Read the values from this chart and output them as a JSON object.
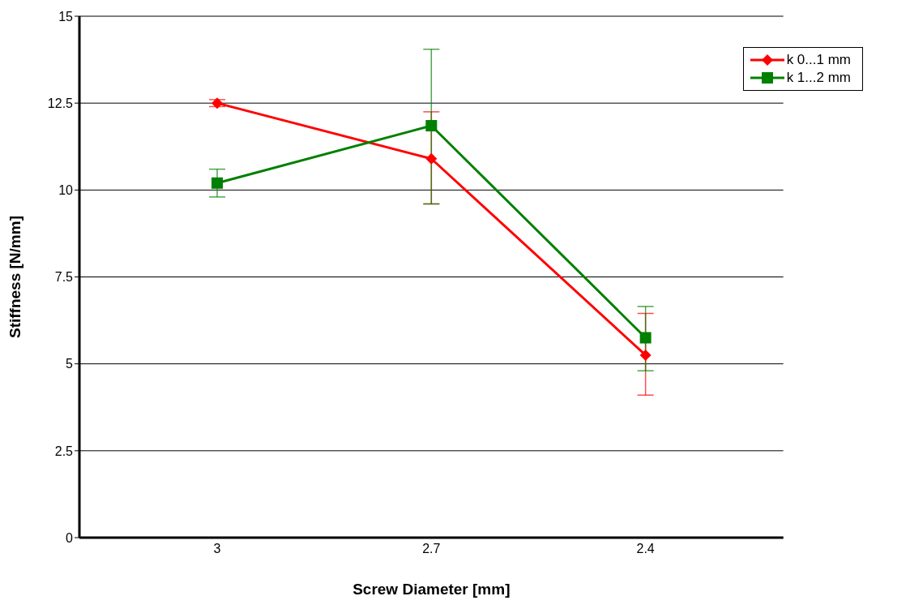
{
  "chart_data": {
    "type": "line",
    "xlabel": "Screw Diameter [mm]",
    "ylabel": "Stiffness [N/mm]",
    "categories": [
      "3",
      "2.7",
      "2.4"
    ],
    "series": [
      {
        "name": "k 0...1 mm",
        "color": "#ff0000",
        "marker": "diamond",
        "values": [
          12.5,
          10.9,
          5.25
        ],
        "errors": [
          [
            12.4,
            12.6
          ],
          [
            9.6,
            12.25
          ],
          [
            4.1,
            6.45
          ]
        ]
      },
      {
        "name": "k 1...2 mm",
        "color": "#008000",
        "marker": "square",
        "values": [
          10.2,
          11.85,
          5.75
        ],
        "errors": [
          [
            9.8,
            10.6
          ],
          [
            9.6,
            14.05
          ],
          [
            4.8,
            6.65
          ]
        ]
      }
    ],
    "ylim": [
      0,
      15
    ],
    "yticks": [
      0,
      2.5,
      5,
      7.5,
      10,
      12.5,
      15
    ],
    "grid": "y",
    "legend": "top right",
    "line_style": "solid"
  }
}
